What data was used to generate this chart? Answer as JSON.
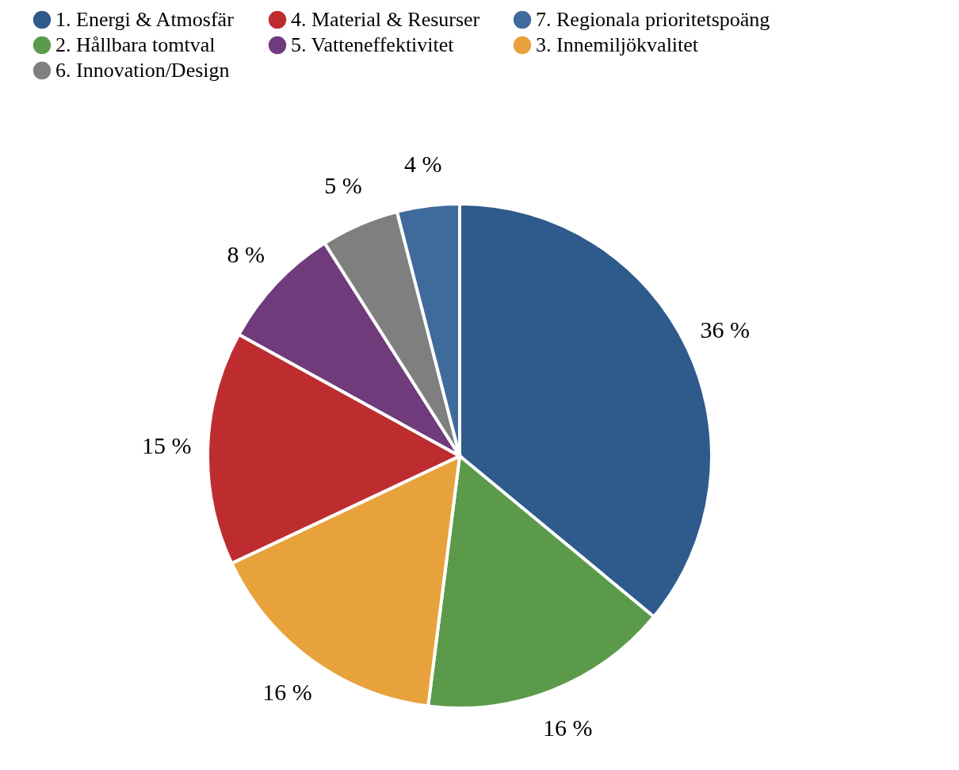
{
  "chart_data": {
    "type": "pie",
    "categories": [
      "1. Energi & Atmosfär",
      "2. Hållbara tomtval",
      "3. Innemiljökvalitet",
      "4. Material & Resurser",
      "5. Vatteneffektivitet",
      "6. Innovation/Design",
      "7. Regionala prioritetspoäng"
    ],
    "values": [
      36,
      16,
      16,
      15,
      8,
      5,
      4
    ],
    "colors": [
      "#2e5a8c",
      "#5b9a4a",
      "#e8a23c",
      "#bd2d30",
      "#6f3b7b",
      "#7f7f7f",
      "#3f6a9c"
    ],
    "value_labels": [
      "36 %",
      "16 %",
      "16 %",
      "15 %",
      "8 %",
      "5 %",
      "4 %"
    ],
    "legend": "top"
  }
}
